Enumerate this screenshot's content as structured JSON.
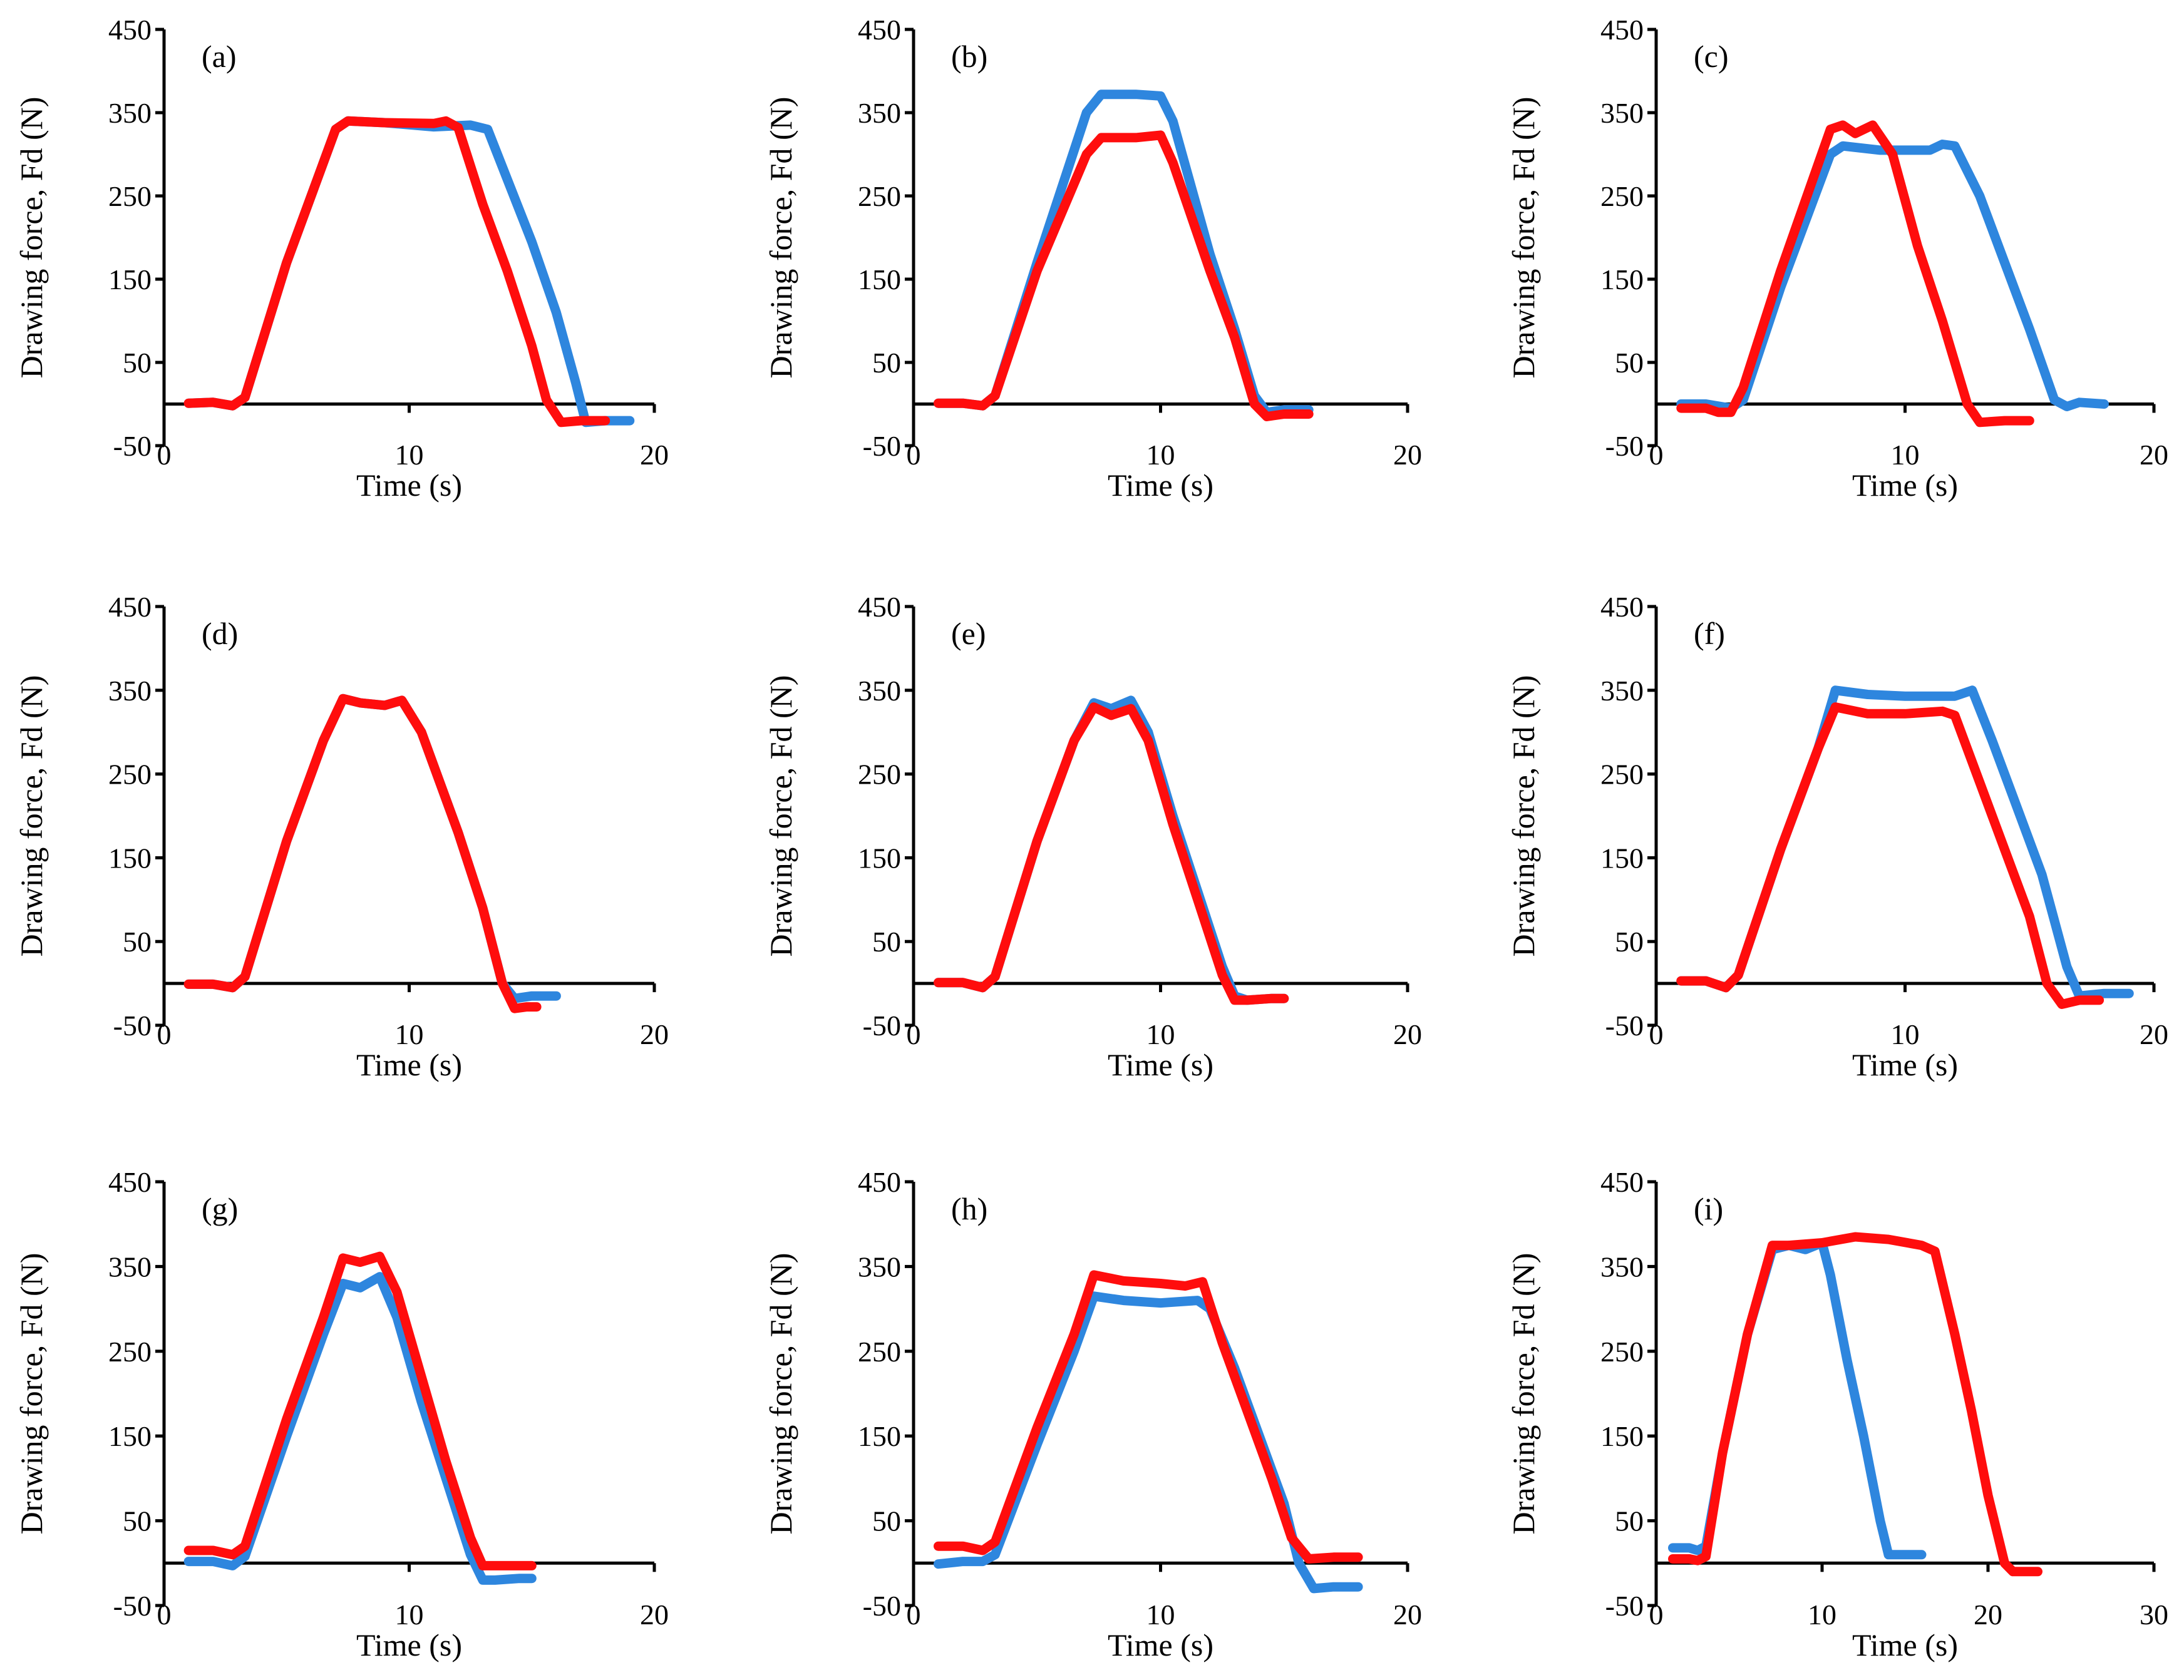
{
  "colors": {
    "blue": "#2E86DE",
    "red": "#FF0D0D",
    "axis": "#000000"
  },
  "chart_data": [
    {
      "type": "line",
      "label": "(a)",
      "xlabel": "Time (s)",
      "ylabel": "Drawing force, Fd (N)",
      "xlim": [
        0,
        20
      ],
      "ylim": [
        -50,
        450
      ],
      "xticks": [
        0,
        10,
        20
      ],
      "yticks": [
        -50,
        50,
        150,
        250,
        350,
        450
      ],
      "grid": false,
      "legend": "none",
      "series": [
        {
          "name": "blue",
          "color": "#2E86DE",
          "x": [
            1,
            2,
            2.8,
            3.3,
            5,
            7,
            7.5,
            9,
            11,
            12.5,
            13.2,
            14,
            15,
            16,
            16.8,
            17.2,
            18,
            19
          ],
          "y": [
            1,
            2,
            -2,
            8,
            170,
            330,
            340,
            338,
            333,
            335,
            330,
            270,
            195,
            110,
            25,
            -22,
            -20,
            -20
          ]
        },
        {
          "name": "red",
          "color": "#FF0D0D",
          "x": [
            1,
            2,
            2.8,
            3.3,
            5,
            7,
            7.5,
            9,
            11,
            11.5,
            12,
            13,
            14,
            15,
            15.6,
            16.2,
            17,
            18
          ],
          "y": [
            1,
            2,
            -2,
            8,
            170,
            330,
            340,
            338,
            337,
            340,
            332,
            240,
            160,
            70,
            5,
            -22,
            -20,
            -20
          ]
        }
      ]
    },
    {
      "type": "line",
      "label": "(b)",
      "xlabel": "Time (s)",
      "ylabel": "Drawing force, Fd (N)",
      "xlim": [
        0,
        20
      ],
      "ylim": [
        -50,
        450
      ],
      "xticks": [
        0,
        10,
        20
      ],
      "yticks": [
        -50,
        50,
        150,
        250,
        350,
        450
      ],
      "grid": false,
      "legend": "none",
      "series": [
        {
          "name": "blue",
          "color": "#2E86DE",
          "x": [
            1,
            2,
            2.8,
            3.3,
            5,
            7,
            7.6,
            9,
            10,
            10.5,
            12,
            13,
            13.8,
            14.3,
            15,
            16
          ],
          "y": [
            1,
            1,
            -2,
            10,
            170,
            350,
            372,
            372,
            370,
            340,
            180,
            90,
            10,
            -10,
            -7,
            -7
          ]
        },
        {
          "name": "red",
          "color": "#FF0D0D",
          "x": [
            1,
            2,
            2.8,
            3.3,
            5,
            7,
            7.6,
            9,
            10,
            10.5,
            12,
            13,
            13.8,
            14.3,
            15,
            16
          ],
          "y": [
            1,
            1,
            -2,
            10,
            160,
            300,
            320,
            320,
            323,
            290,
            160,
            80,
            0,
            -15,
            -12,
            -12
          ]
        }
      ]
    },
    {
      "type": "line",
      "label": "(c)",
      "xlabel": "Time (s)",
      "ylabel": "Drawing force, Fd (N)",
      "xlim": [
        0,
        20
      ],
      "ylim": [
        -50,
        450
      ],
      "xticks": [
        0,
        10,
        20
      ],
      "yticks": [
        -50,
        50,
        150,
        250,
        350,
        450
      ],
      "grid": false,
      "legend": "none",
      "series": [
        {
          "name": "blue",
          "color": "#2E86DE",
          "x": [
            1,
            2,
            3,
            3.5,
            5,
            7,
            7.5,
            9,
            11,
            11.5,
            12,
            13,
            14,
            15,
            16,
            16.5,
            17,
            18
          ],
          "y": [
            0,
            0,
            -5,
            5,
            140,
            300,
            310,
            305,
            305,
            312,
            310,
            250,
            170,
            90,
            5,
            -3,
            2,
            0
          ]
        },
        {
          "name": "red",
          "color": "#FF0D0D",
          "x": [
            1,
            2,
            2.5,
            3,
            3.5,
            5,
            7,
            7.5,
            8,
            8.7,
            9.5,
            10.5,
            11.5,
            12.5,
            13,
            14,
            15
          ],
          "y": [
            -5,
            -5,
            -10,
            -10,
            20,
            160,
            330,
            335,
            325,
            335,
            300,
            190,
            100,
            0,
            -22,
            -20,
            -20
          ]
        }
      ]
    },
    {
      "type": "line",
      "label": "(d)",
      "xlabel": "Time (s)",
      "ylabel": "Drawing force, Fd (N)",
      "xlim": [
        0,
        20
      ],
      "ylim": [
        -50,
        450
      ],
      "xticks": [
        0,
        10,
        20
      ],
      "yticks": [
        -50,
        50,
        150,
        250,
        350,
        450
      ],
      "grid": false,
      "legend": "none",
      "series": [
        {
          "name": "blue",
          "color": "#2E86DE",
          "x": [
            1,
            2,
            2.8,
            3.3,
            5,
            6.5,
            7.3,
            8,
            9,
            9.7,
            10.5,
            12,
            13,
            13.8,
            14.3,
            15,
            16
          ],
          "y": [
            -1,
            -1,
            -5,
            8,
            170,
            290,
            340,
            335,
            332,
            338,
            300,
            180,
            90,
            0,
            -18,
            -15,
            -15
          ]
        },
        {
          "name": "red",
          "color": "#FF0D0D",
          "x": [
            1,
            2,
            2.8,
            3.3,
            5,
            6.5,
            7.3,
            8,
            9,
            9.7,
            10.5,
            12,
            13,
            13.8,
            14.3,
            14.8,
            15.2
          ],
          "y": [
            -1,
            -1,
            -5,
            8,
            170,
            290,
            340,
            335,
            332,
            338,
            300,
            180,
            90,
            0,
            -30,
            -28,
            -28
          ]
        }
      ]
    },
    {
      "type": "line",
      "label": "(e)",
      "xlabel": "Time (s)",
      "ylabel": "Drawing force, Fd (N)",
      "xlim": [
        0,
        20
      ],
      "ylim": [
        -50,
        450
      ],
      "xticks": [
        0,
        10,
        20
      ],
      "yticks": [
        -50,
        50,
        150,
        250,
        350,
        450
      ],
      "grid": false,
      "legend": "none",
      "series": [
        {
          "name": "blue",
          "color": "#2E86DE",
          "x": [
            1,
            2,
            2.8,
            3.3,
            5,
            6.5,
            7.3,
            8,
            8.8,
            9.5,
            10.5,
            11.5,
            12.5,
            13,
            13.5,
            14.5,
            15
          ],
          "y": [
            1,
            1,
            -5,
            8,
            170,
            290,
            335,
            328,
            338,
            300,
            200,
            110,
            20,
            -15,
            -20,
            -18,
            -18
          ]
        },
        {
          "name": "red",
          "color": "#FF0D0D",
          "x": [
            1,
            2,
            2.8,
            3.3,
            5,
            6.5,
            7.3,
            8,
            8.8,
            9.5,
            10.5,
            11.5,
            12.5,
            13,
            13.5,
            14.5,
            15
          ],
          "y": [
            1,
            1,
            -5,
            8,
            170,
            290,
            330,
            320,
            328,
            290,
            190,
            100,
            10,
            -20,
            -20,
            -18,
            -18
          ]
        }
      ]
    },
    {
      "type": "line",
      "label": "(f)",
      "xlabel": "Time (s)",
      "ylabel": "Drawing force, Fd (N)",
      "xlim": [
        0,
        20
      ],
      "ylim": [
        -50,
        450
      ],
      "xticks": [
        0,
        10,
        20
      ],
      "yticks": [
        -50,
        50,
        150,
        250,
        350,
        450
      ],
      "grid": false,
      "legend": "none",
      "series": [
        {
          "name": "blue",
          "color": "#2E86DE",
          "x": [
            1,
            2,
            2.8,
            3.3,
            5,
            6.5,
            7.2,
            8.5,
            10,
            12,
            12.7,
            13.5,
            14.5,
            15.5,
            16.5,
            17,
            18,
            19
          ],
          "y": [
            3,
            3,
            -5,
            10,
            160,
            280,
            350,
            345,
            343,
            343,
            350,
            290,
            210,
            130,
            20,
            -15,
            -12,
            -12
          ]
        },
        {
          "name": "red",
          "color": "#FF0D0D",
          "x": [
            1,
            2,
            2.8,
            3.3,
            5,
            6.5,
            7.2,
            8.5,
            10,
            11.5,
            12,
            13,
            14,
            15,
            15.7,
            16.3,
            17,
            17.8
          ],
          "y": [
            3,
            3,
            -5,
            10,
            160,
            280,
            330,
            322,
            322,
            325,
            320,
            240,
            160,
            80,
            0,
            -25,
            -20,
            -20
          ]
        }
      ]
    },
    {
      "type": "line",
      "label": "(g)",
      "xlabel": "Time (s)",
      "ylabel": "Drawing force, Fd (N)",
      "xlim": [
        0,
        20
      ],
      "ylim": [
        -50,
        450
      ],
      "xticks": [
        0,
        10,
        20
      ],
      "yticks": [
        -50,
        50,
        150,
        250,
        350,
        450
      ],
      "grid": false,
      "legend": "none",
      "series": [
        {
          "name": "blue",
          "color": "#2E86DE",
          "x": [
            1,
            2,
            2.8,
            3.3,
            5,
            6.5,
            7.3,
            8,
            8.8,
            9.5,
            10.5,
            11.5,
            12.5,
            13,
            13.5,
            14.5,
            15
          ],
          "y": [
            2,
            2,
            -3,
            8,
            150,
            270,
            330,
            325,
            338,
            290,
            190,
            100,
            10,
            -20,
            -20,
            -18,
            -18
          ]
        },
        {
          "name": "red",
          "color": "#FF0D0D",
          "x": [
            1,
            2,
            2.8,
            3.3,
            5,
            6.5,
            7.3,
            8,
            8.8,
            9.5,
            10.5,
            11.5,
            12.5,
            13,
            13.5,
            14.5,
            15
          ],
          "y": [
            15,
            15,
            10,
            20,
            170,
            290,
            360,
            355,
            362,
            320,
            220,
            120,
            30,
            -3,
            -3,
            -3,
            -3
          ]
        }
      ]
    },
    {
      "type": "line",
      "label": "(h)",
      "xlabel": "Time (s)",
      "ylabel": "Drawing force, Fd (N)",
      "xlim": [
        0,
        20
      ],
      "ylim": [
        -50,
        450
      ],
      "xticks": [
        0,
        10,
        20
      ],
      "yticks": [
        -50,
        50,
        150,
        250,
        350,
        450
      ],
      "grid": false,
      "legend": "none",
      "series": [
        {
          "name": "blue",
          "color": "#2E86DE",
          "x": [
            1,
            2,
            2.8,
            3.3,
            5,
            6.5,
            7.3,
            8.5,
            10,
            11.5,
            12,
            13,
            14,
            15,
            15.6,
            16.2,
            17,
            18
          ],
          "y": [
            -1,
            2,
            2,
            10,
            140,
            250,
            315,
            310,
            307,
            310,
            300,
            230,
            150,
            70,
            0,
            -30,
            -28,
            -28
          ]
        },
        {
          "name": "red",
          "color": "#FF0D0D",
          "x": [
            1,
            2,
            2.8,
            3.3,
            5,
            6.5,
            7.3,
            8.5,
            10,
            11,
            11.7,
            12.5,
            13.5,
            14.5,
            15.3,
            16,
            17,
            18
          ],
          "y": [
            20,
            20,
            15,
            25,
            160,
            270,
            340,
            333,
            330,
            327,
            332,
            260,
            180,
            100,
            30,
            5,
            7,
            7
          ]
        }
      ]
    },
    {
      "type": "line",
      "label": "(i)",
      "xlabel": "Time (s)",
      "ylabel": "Drawing force, Fd (N)",
      "xlim": [
        0,
        30
      ],
      "ylim": [
        -50,
        450
      ],
      "xticks": [
        0,
        10,
        20,
        30
      ],
      "yticks": [
        -50,
        50,
        150,
        250,
        350,
        450
      ],
      "grid": false,
      "legend": "none",
      "series": [
        {
          "name": "blue",
          "color": "#2E86DE",
          "x": [
            1,
            2,
            2.5,
            3,
            4,
            5.5,
            7,
            8,
            9,
            10,
            10.5,
            11.5,
            12.5,
            13.5,
            14,
            14.5,
            15,
            16
          ],
          "y": [
            18,
            18,
            15,
            20,
            130,
            270,
            370,
            375,
            370,
            378,
            340,
            240,
            150,
            50,
            10,
            10,
            10,
            10
          ]
        },
        {
          "name": "red",
          "color": "#FF0D0D",
          "x": [
            1,
            2,
            2.5,
            3,
            4,
            5.5,
            7,
            8,
            10,
            12,
            14,
            16,
            16.8,
            18,
            19,
            20,
            21,
            21.5,
            23
          ],
          "y": [
            5,
            5,
            3,
            8,
            130,
            270,
            375,
            375,
            378,
            385,
            382,
            375,
            368,
            270,
            180,
            80,
            0,
            -10,
            -10
          ]
        }
      ]
    }
  ]
}
